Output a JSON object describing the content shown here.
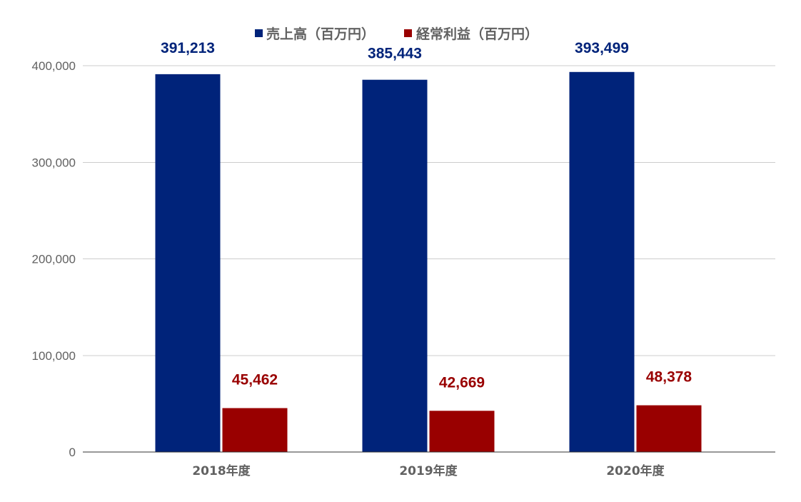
{
  "chart_data": {
    "type": "bar",
    "categories": [
      "2018年度",
      "2019年度",
      "2020年度"
    ],
    "series": [
      {
        "name": "売上高（百万円）",
        "color": "#00237a",
        "values": [
          391213,
          385443,
          393499
        ],
        "labels": [
          "391,213",
          "385,443",
          "393,499"
        ]
      },
      {
        "name": "経常利益（百万円）",
        "color": "#990000",
        "values": [
          45462,
          42669,
          48378
        ],
        "labels": [
          "45,462",
          "42,669",
          "48,378"
        ]
      }
    ],
    "yticks": [
      0,
      100000,
      200000,
      300000,
      400000
    ],
    "ytick_labels": [
      "0",
      "100,000",
      "200,000",
      "300,000",
      "400,000"
    ],
    "ylim": [
      0,
      400000
    ],
    "grid": true,
    "legend_position": "top-center",
    "title": "",
    "xlabel": "",
    "ylabel": ""
  }
}
